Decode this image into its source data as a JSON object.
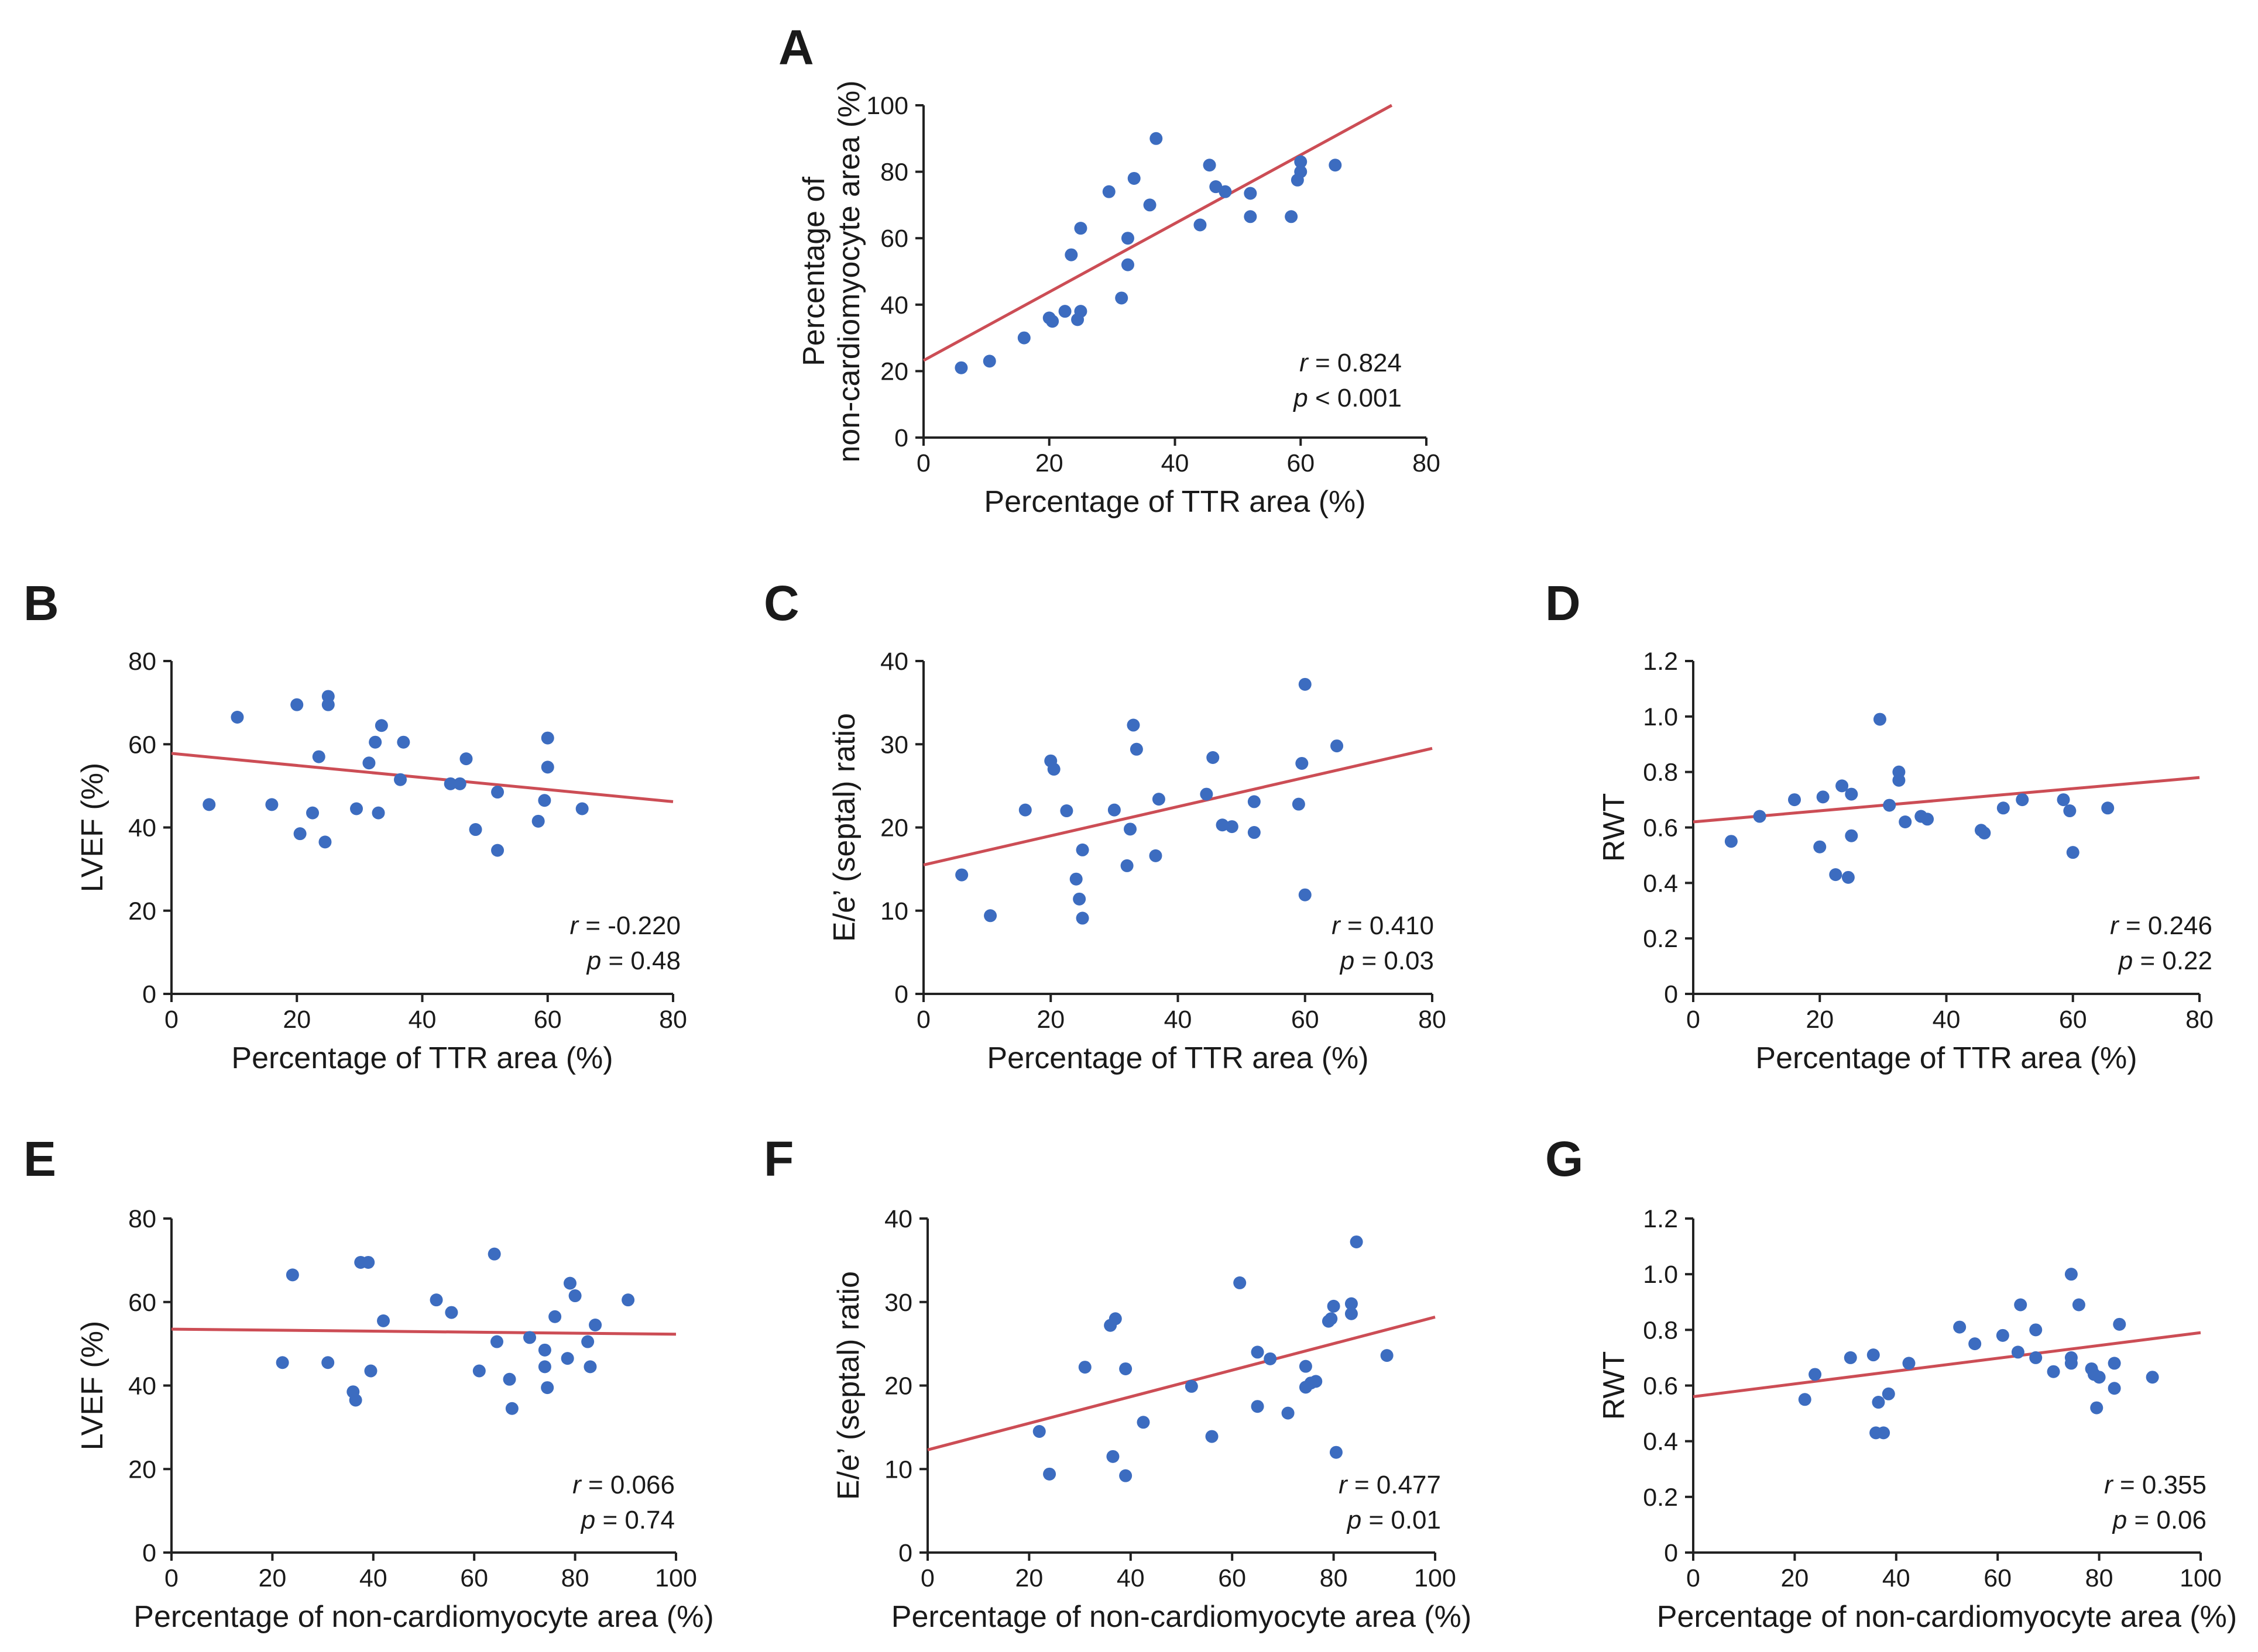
{
  "figure": {
    "point_color": "#3c6cc0",
    "line_color": "#cc4d55",
    "axis_color": "#222222"
  },
  "chart_data": [
    {
      "id": "A",
      "label": "A",
      "type": "scatter",
      "xlabel": "Percentage of TTR area (%)",
      "ylabel": [
        "Percentage of",
        "non-cardiomyocyte area (%)"
      ],
      "xlim": [
        0,
        80
      ],
      "ylim": [
        0,
        100
      ],
      "xticks": [
        0,
        20,
        40,
        60,
        80
      ],
      "yticks": [
        0,
        20,
        40,
        60,
        80,
        100
      ],
      "stats": {
        "r_label": "r",
        "r_text": " = 0.824",
        "p_label": "p",
        "p_text": " < 0.001"
      },
      "fit": {
        "x": [
          0,
          74.5
        ],
        "y": [
          23.2,
          100
        ]
      },
      "points": [
        [
          6,
          21
        ],
        [
          10.5,
          23
        ],
        [
          16,
          30
        ],
        [
          20,
          36
        ],
        [
          20.5,
          35
        ],
        [
          22.5,
          38
        ],
        [
          24.5,
          35.5
        ],
        [
          25,
          38
        ],
        [
          23.5,
          55
        ],
        [
          25,
          63
        ],
        [
          29.5,
          74
        ],
        [
          31.5,
          42
        ],
        [
          32.5,
          52
        ],
        [
          32.5,
          60
        ],
        [
          33.5,
          78
        ],
        [
          36,
          70
        ],
        [
          37,
          90
        ],
        [
          44,
          64
        ],
        [
          45.5,
          82
        ],
        [
          46.5,
          75.5
        ],
        [
          48,
          74
        ],
        [
          52,
          66.5
        ],
        [
          52,
          73.5
        ],
        [
          58.5,
          66.5
        ],
        [
          59.5,
          77.5
        ],
        [
          60,
          80
        ],
        [
          60,
          83
        ],
        [
          65.5,
          82
        ]
      ]
    },
    {
      "id": "B",
      "label": "B",
      "type": "scatter",
      "xlabel": "Percentage of TTR area (%)",
      "ylabel": [
        "LVEF (%)"
      ],
      "xlim": [
        0,
        80
      ],
      "ylim": [
        0,
        80
      ],
      "xticks": [
        0,
        20,
        40,
        60,
        80
      ],
      "yticks": [
        0,
        20,
        40,
        60,
        80
      ],
      "stats": {
        "r_label": "r",
        "r_text": " = -0.220",
        "p_label": "p",
        "p_text": " = 0.48"
      },
      "fit": {
        "x": [
          0,
          80
        ],
        "y": [
          57.8,
          46.2
        ]
      },
      "points": [
        [
          6,
          45.5
        ],
        [
          10.5,
          66.5
        ],
        [
          16,
          45.5
        ],
        [
          20,
          69.5
        ],
        [
          20.5,
          38.5
        ],
        [
          22.5,
          43.5
        ],
        [
          23.5,
          57
        ],
        [
          24.5,
          36.5
        ],
        [
          25,
          71.5
        ],
        [
          25,
          69.5
        ],
        [
          29.5,
          44.5
        ],
        [
          31.5,
          55.5
        ],
        [
          32.5,
          60.5
        ],
        [
          33,
          43.5
        ],
        [
          33.5,
          64.5
        ],
        [
          36.5,
          51.5
        ],
        [
          37,
          60.5
        ],
        [
          44.5,
          50.5
        ],
        [
          46,
          50.5
        ],
        [
          47,
          56.5
        ],
        [
          48.5,
          39.5
        ],
        [
          52,
          48.5
        ],
        [
          52,
          34.5
        ],
        [
          58.5,
          41.5
        ],
        [
          59.5,
          46.5
        ],
        [
          60,
          61.5
        ],
        [
          60,
          54.5
        ],
        [
          65.5,
          44.5
        ]
      ]
    },
    {
      "id": "C",
      "label": "C",
      "type": "scatter",
      "xlabel": "Percentage of TTR area (%)",
      "ylabel": [
        "E/e’ (septal) ratio"
      ],
      "xlim": [
        0,
        80
      ],
      "ylim": [
        0,
        40
      ],
      "xticks": [
        0,
        20,
        40,
        60,
        80
      ],
      "yticks": [
        0,
        10,
        20,
        30,
        40
      ],
      "stats": {
        "r_label": "r",
        "r_text": " = 0.410",
        "p_label": "p",
        "p_text": " = 0.03"
      },
      "fit": {
        "x": [
          0,
          80
        ],
        "y": [
          15.5,
          29.5
        ]
      },
      "points": [
        [
          6,
          14.3
        ],
        [
          10.5,
          9.4
        ],
        [
          16,
          22.1
        ],
        [
          20,
          28
        ],
        [
          20.5,
          27
        ],
        [
          22.5,
          22
        ],
        [
          24,
          13.8
        ],
        [
          24.5,
          11.4
        ],
        [
          25,
          9.1
        ],
        [
          25,
          17.3
        ],
        [
          30,
          22.1
        ],
        [
          32,
          15.4
        ],
        [
          32.5,
          19.8
        ],
        [
          33,
          32.3
        ],
        [
          33.5,
          29.4
        ],
        [
          36.5,
          16.6
        ],
        [
          37,
          23.4
        ],
        [
          44.5,
          24
        ],
        [
          45.5,
          28.4
        ],
        [
          47,
          20.3
        ],
        [
          48.5,
          20.1
        ],
        [
          52,
          19.4
        ],
        [
          52,
          23.1
        ],
        [
          59,
          22.8
        ],
        [
          59.5,
          27.7
        ],
        [
          60,
          37.2
        ],
        [
          60,
          11.9
        ],
        [
          65,
          29.8
        ]
      ]
    },
    {
      "id": "D",
      "label": "D",
      "type": "scatter",
      "xlabel": "Percentage of TTR area (%)",
      "ylabel": [
        "RWT"
      ],
      "xlim": [
        0,
        80
      ],
      "ylim": [
        0,
        1.2
      ],
      "xticks": [
        0,
        20,
        40,
        60,
        80
      ],
      "yticks": [
        0,
        0.2,
        0.4,
        0.6,
        0.8,
        1.0,
        1.2
      ],
      "ytick_labels": [
        "0",
        "0.2",
        "0.4",
        "0.6",
        "0.8",
        "1.0",
        "1.2"
      ],
      "stats": {
        "r_label": "r",
        "r_text": " = 0.246",
        "p_label": "p",
        "p_text": " = 0.22"
      },
      "fit": {
        "x": [
          0,
          80
        ],
        "y": [
          0.62,
          0.78
        ]
      },
      "points": [
        [
          6,
          0.55
        ],
        [
          10.5,
          0.64
        ],
        [
          16,
          0.7
        ],
        [
          20,
          0.53
        ],
        [
          20.5,
          0.71
        ],
        [
          22.5,
          0.43
        ],
        [
          23.5,
          0.75
        ],
        [
          24.5,
          0.42
        ],
        [
          25,
          0.57
        ],
        [
          25,
          0.72
        ],
        [
          29.5,
          0.99
        ],
        [
          31,
          0.68
        ],
        [
          32.5,
          0.8
        ],
        [
          32.5,
          0.77
        ],
        [
          33.5,
          0.62
        ],
        [
          36,
          0.64
        ],
        [
          37,
          0.63
        ],
        [
          45.5,
          0.59
        ],
        [
          46,
          0.58
        ],
        [
          49,
          0.67
        ],
        [
          52,
          0.7
        ],
        [
          58.5,
          0.7
        ],
        [
          59.5,
          0.66
        ],
        [
          60,
          0.51
        ],
        [
          65.5,
          0.67
        ]
      ]
    },
    {
      "id": "E",
      "label": "E",
      "type": "scatter",
      "xlabel": "Percentage of non-cardiomyocyte area (%)",
      "ylabel": [
        "LVEF (%)"
      ],
      "xlim": [
        0,
        100
      ],
      "ylim": [
        0,
        80
      ],
      "xticks": [
        0,
        20,
        40,
        60,
        80,
        100
      ],
      "yticks": [
        0,
        20,
        40,
        60,
        80
      ],
      "stats": {
        "r_label": "r",
        "r_text": " = 0.066",
        "p_label": "p",
        "p_text": " = 0.74"
      },
      "fit": {
        "x": [
          0,
          100
        ],
        "y": [
          53.5,
          52.3
        ]
      },
      "points": [
        [
          22,
          45.5
        ],
        [
          24,
          66.5
        ],
        [
          31,
          45.5
        ],
        [
          36,
          38.5
        ],
        [
          36.5,
          36.5
        ],
        [
          37.5,
          69.5
        ],
        [
          39,
          69.5
        ],
        [
          39.5,
          43.5
        ],
        [
          42,
          55.5
        ],
        [
          52.5,
          60.5
        ],
        [
          55.5,
          57.5
        ],
        [
          61,
          43.5
        ],
        [
          64,
          71.5
        ],
        [
          64.5,
          50.5
        ],
        [
          67,
          41.5
        ],
        [
          67.5,
          34.5
        ],
        [
          71,
          51.5
        ],
        [
          74,
          48.5
        ],
        [
          74,
          44.5
        ],
        [
          74.5,
          39.5
        ],
        [
          76,
          56.5
        ],
        [
          78.5,
          46.5
        ],
        [
          79,
          64.5
        ],
        [
          80,
          61.5
        ],
        [
          82.5,
          50.5
        ],
        [
          83,
          44.5
        ],
        [
          84,
          54.5
        ],
        [
          90.5,
          60.5
        ]
      ]
    },
    {
      "id": "F",
      "label": "F",
      "type": "scatter",
      "xlabel": "Percentage of non-cardiomyocyte area (%)",
      "ylabel": [
        "E/e’ (septal) ratio"
      ],
      "xlim": [
        0,
        100
      ],
      "ylim": [
        0,
        40
      ],
      "xticks": [
        0,
        20,
        40,
        60,
        80,
        100
      ],
      "yticks": [
        0,
        10,
        20,
        30,
        40
      ],
      "stats": {
        "r_label": "r",
        "r_text": " = 0.477",
        "p_label": "p",
        "p_text": " = 0.01"
      },
      "fit": {
        "x": [
          0,
          100
        ],
        "y": [
          12.3,
          28.2
        ]
      },
      "points": [
        [
          22,
          14.5
        ],
        [
          24,
          9.4
        ],
        [
          31,
          22.2
        ],
        [
          36,
          27.2
        ],
        [
          36.5,
          11.5
        ],
        [
          37,
          28
        ],
        [
          39,
          22
        ],
        [
          39,
          9.2
        ],
        [
          42.5,
          15.6
        ],
        [
          52,
          19.9
        ],
        [
          56,
          13.9
        ],
        [
          61.5,
          32.3
        ],
        [
          65,
          17.5
        ],
        [
          65,
          24
        ],
        [
          67.5,
          23.2
        ],
        [
          71,
          16.7
        ],
        [
          74.5,
          22.3
        ],
        [
          74.5,
          19.8
        ],
        [
          75.5,
          20.3
        ],
        [
          76.5,
          20.5
        ],
        [
          79,
          27.7
        ],
        [
          79.5,
          28
        ],
        [
          80,
          29.5
        ],
        [
          80.5,
          12
        ],
        [
          83.5,
          29.8
        ],
        [
          83.5,
          28.6
        ],
        [
          84.5,
          37.2
        ],
        [
          90.5,
          23.6
        ]
      ]
    },
    {
      "id": "G",
      "label": "G",
      "type": "scatter",
      "xlabel": "Percentage of non-cardiomyocyte area (%)",
      "ylabel": [
        "RWT"
      ],
      "xlim": [
        0,
        100
      ],
      "ylim": [
        0,
        1.2
      ],
      "xticks": [
        0,
        20,
        40,
        60,
        80,
        100
      ],
      "yticks": [
        0,
        0.2,
        0.4,
        0.6,
        0.8,
        1.0,
        1.2
      ],
      "ytick_labels": [
        "0",
        "0.2",
        "0.4",
        "0.6",
        "0.8",
        "1.0",
        "1.2"
      ],
      "stats": {
        "r_label": "r",
        "r_text": " = 0.355",
        "p_label": "p",
        "p_text": " = 0.06"
      },
      "fit": {
        "x": [
          0,
          100
        ],
        "y": [
          0.56,
          0.79
        ]
      },
      "points": [
        [
          22,
          0.55
        ],
        [
          24,
          0.64
        ],
        [
          31,
          0.7
        ],
        [
          35.5,
          0.71
        ],
        [
          36,
          0.43
        ],
        [
          36.5,
          0.54
        ],
        [
          37.5,
          0.43
        ],
        [
          38.5,
          0.57
        ],
        [
          42.5,
          0.68
        ],
        [
          52.5,
          0.81
        ],
        [
          55.5,
          0.75
        ],
        [
          61,
          0.78
        ],
        [
          64,
          0.72
        ],
        [
          64.5,
          0.89
        ],
        [
          67.5,
          0.8
        ],
        [
          67.5,
          0.7
        ],
        [
          71,
          0.65
        ],
        [
          74.5,
          0.7
        ],
        [
          74.5,
          1.0
        ],
        [
          74.5,
          0.68
        ],
        [
          76,
          0.89
        ],
        [
          78.5,
          0.66
        ],
        [
          79,
          0.64
        ],
        [
          79.5,
          0.52
        ],
        [
          80,
          0.63
        ],
        [
          83,
          0.59
        ],
        [
          83,
          0.68
        ],
        [
          84,
          0.82
        ],
        [
          90.5,
          0.63
        ]
      ]
    }
  ]
}
